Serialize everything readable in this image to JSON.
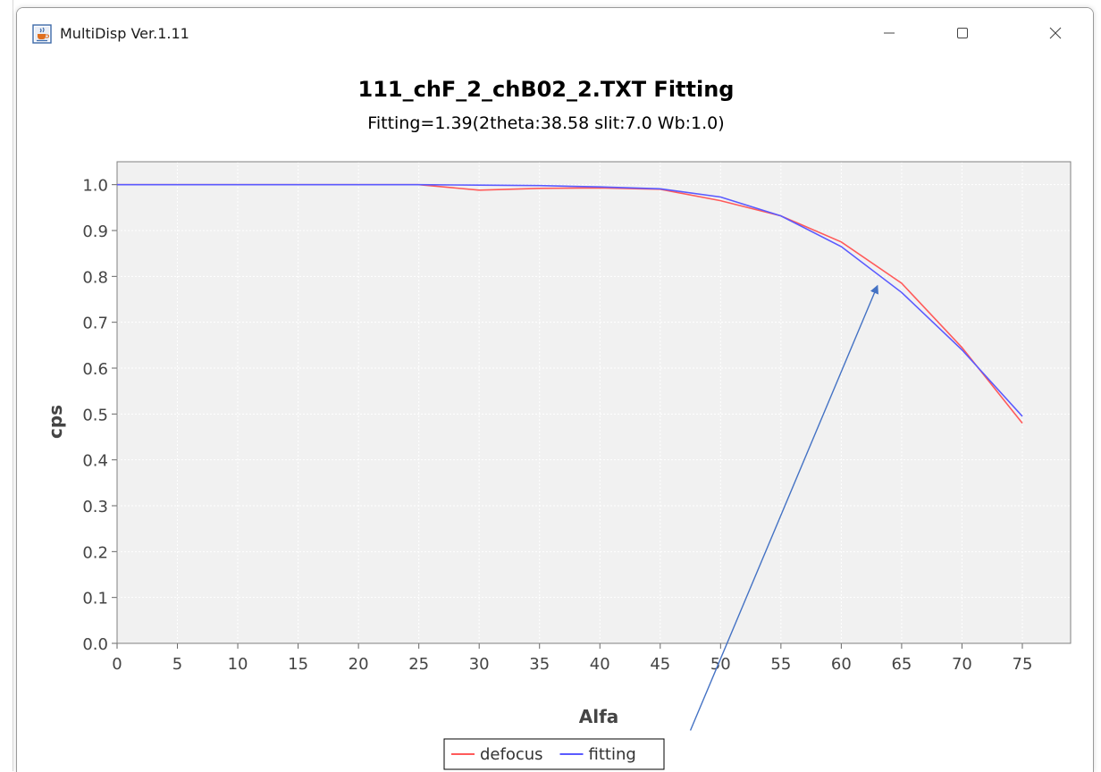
{
  "window": {
    "title": "MultiDisp Ver.1.11",
    "icon": "java-coffee-icon",
    "controls": {
      "minimize_icon": "minimize-icon",
      "maximize_icon": "maximize-icon",
      "close_icon": "close-icon"
    }
  },
  "chart_data": {
    "type": "line",
    "title": "111_chF_2_chB02_2.TXT Fitting",
    "subtitle": "Fitting=1.39(2theta:38.58 slit:7.0 Wb:1.0)",
    "xlabel": "Alfa",
    "ylabel": "cps",
    "xlim": [
      0,
      79
    ],
    "ylim": [
      0.0,
      1.05
    ],
    "x_ticks": [
      "0",
      "5",
      "10",
      "15",
      "20",
      "25",
      "30",
      "35",
      "40",
      "45",
      "50",
      "55",
      "60",
      "65",
      "70",
      "75"
    ],
    "y_ticks": [
      "0.0",
      "0.1",
      "0.2",
      "0.3",
      "0.4",
      "0.5",
      "0.6",
      "0.7",
      "0.8",
      "0.9",
      "1.0"
    ],
    "grid": true,
    "legend_position": "bottom-center",
    "series": [
      {
        "name": "defocus",
        "color": "#ff5a5a",
        "x": [
          0,
          5,
          10,
          15,
          20,
          25,
          30,
          35,
          40,
          45,
          50,
          55,
          60,
          65,
          70,
          75
        ],
        "y": [
          1.0,
          1.0,
          1.0,
          1.0,
          1.0,
          1.0,
          0.988,
          0.992,
          0.993,
          0.99,
          0.965,
          0.932,
          0.875,
          0.785,
          0.645,
          0.48
        ]
      },
      {
        "name": "fitting",
        "color": "#5a5aff",
        "x": [
          0,
          5,
          10,
          15,
          20,
          25,
          30,
          35,
          40,
          45,
          50,
          55,
          60,
          65,
          70,
          75
        ],
        "y": [
          1.0,
          1.0,
          1.0,
          1.0,
          1.0,
          1.0,
          0.999,
          0.998,
          0.995,
          0.991,
          0.973,
          0.932,
          0.865,
          0.765,
          0.64,
          0.495
        ]
      }
    ],
    "annotations": [
      {
        "type": "arrow",
        "from": [
          47.5,
          -0.19
        ],
        "to": [
          63.0,
          0.78
        ],
        "color": "#4472c4"
      }
    ]
  }
}
